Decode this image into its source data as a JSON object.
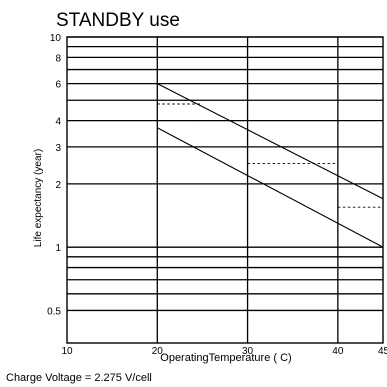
{
  "chart_data": {
    "type": "line",
    "title": "STANDBY use",
    "xlabel": "OperatingTemperature ( C)",
    "ylabel": "Life expectancy (year)",
    "footnote": "Charge Voltage = 2.275 V/cell",
    "x_scale": "linear",
    "y_scale": "log",
    "xlim": [
      10,
      45
    ],
    "ylim": [
      0.35,
      10
    ],
    "x_ticks": [
      {
        "value": 10,
        "label": "10"
      },
      {
        "value": 20,
        "label": "20"
      },
      {
        "value": 30,
        "label": "30"
      },
      {
        "value": 40,
        "label": "40"
      },
      {
        "value": 45,
        "label": "45"
      }
    ],
    "y_ticks": [
      {
        "value": 10,
        "label": "10"
      },
      {
        "value": 8,
        "label": "8"
      },
      {
        "value": 6,
        "label": "6"
      },
      {
        "value": 4,
        "label": "4"
      },
      {
        "value": 3,
        "label": "3"
      },
      {
        "value": 2,
        "label": "2"
      },
      {
        "value": 1,
        "label": "1"
      },
      {
        "value": 0.5,
        "label": "0.5"
      }
    ],
    "major_x_grid": [
      20,
      30,
      40
    ],
    "minor_y_grid": [
      9,
      7,
      5,
      0.9,
      0.8,
      0.7,
      0.6
    ],
    "series": [
      {
        "x": [
          20,
          45
        ],
        "y": [
          6.0,
          1.7
        ]
      },
      {
        "x": [
          20,
          45
        ],
        "y": [
          3.7,
          1.0
        ]
      }
    ],
    "dashed_guides": [
      {
        "from": [
          20,
          4.8
        ],
        "to": [
          25,
          4.8
        ]
      },
      {
        "from": [
          20,
          4.0
        ],
        "to": [
          30,
          4.0
        ]
      },
      {
        "from": [
          25,
          3.0
        ],
        "to": [
          35,
          3.0
        ]
      },
      {
        "from": [
          30,
          2.5
        ],
        "to": [
          40,
          2.5
        ]
      },
      {
        "from": [
          35,
          2.0
        ],
        "to": [
          40,
          2.0
        ]
      },
      {
        "from": [
          40,
          1.55
        ],
        "to": [
          45,
          1.55
        ]
      },
      {
        "from": [
          40,
          2.5
        ],
        "to": [
          40,
          1.35
        ]
      }
    ]
  }
}
